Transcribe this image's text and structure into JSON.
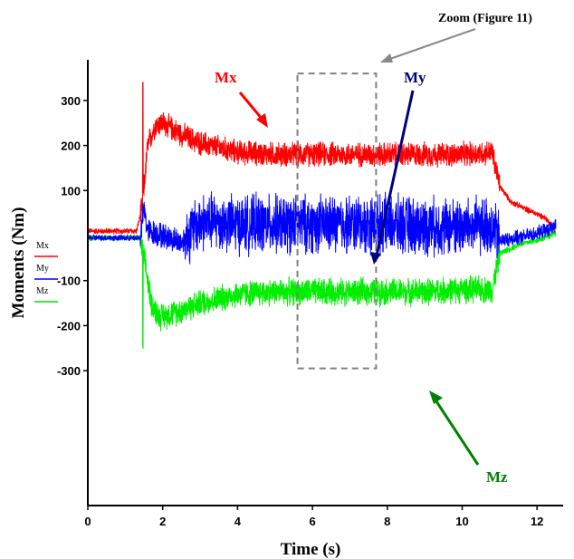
{
  "chart_data": {
    "type": "line",
    "xlabel": "Time (s)",
    "ylabel": "Moments  (Nm)",
    "xlim": [
      0,
      12.6
    ],
    "ylim": [
      -300,
      350
    ],
    "x_ticks": [
      "0",
      "2",
      "4",
      "6",
      "8",
      "10",
      "12"
    ],
    "y_ticks": [
      "300",
      "200",
      "100",
      "-100",
      "-200",
      "-300"
    ],
    "grid": false,
    "legend_placement": "left",
    "legend": [
      "Mx",
      "My",
      "Mz"
    ],
    "series": [
      {
        "name": "Mx",
        "color": "#ff0000",
        "x": [
          0,
          1.3,
          1.45,
          1.6,
          1.8,
          2.0,
          2.5,
          3,
          4,
          5,
          6,
          7,
          8,
          9,
          10,
          10.8,
          11.0,
          11.3,
          11.8,
          12.2,
          12.5
        ],
        "y": [
          10,
          10,
          60,
          200,
          245,
          250,
          225,
          205,
          185,
          180,
          180,
          180,
          180,
          180,
          180,
          185,
          110,
          75,
          55,
          40,
          15
        ],
        "noise": 32,
        "peak": 340
      },
      {
        "name": "My",
        "color": "#0000ff",
        "x": [
          0,
          1.4,
          1.5,
          1.6,
          2.0,
          2.5,
          3.0,
          3.5,
          4,
          5,
          6,
          7,
          8,
          9,
          10,
          10.8,
          11.0,
          11.5,
          12,
          12.5
        ],
        "y": [
          -5,
          -5,
          60,
          10,
          0,
          -15,
          30,
          30,
          25,
          25,
          25,
          25,
          25,
          20,
          20,
          20,
          -10,
          -5,
          5,
          20
        ],
        "noise": 75
      },
      {
        "name": "Mz",
        "color": "#00ee00",
        "x": [
          0,
          1.4,
          1.5,
          1.7,
          1.9,
          2.2,
          3,
          4,
          5,
          6,
          7,
          8,
          9,
          10,
          10.8,
          11.0,
          11.5,
          12,
          12.5
        ],
        "y": [
          -5,
          -5,
          -50,
          -150,
          -180,
          -175,
          -150,
          -130,
          -125,
          -125,
          -125,
          -125,
          -125,
          -120,
          -120,
          -40,
          -20,
          -10,
          5
        ],
        "noise": 35,
        "peak": -250
      }
    ],
    "annotations": [
      {
        "text": "Mx",
        "color": "#ff0000"
      },
      {
        "text": "My",
        "color": "#000080"
      },
      {
        "text": "Mz",
        "color": "#008000"
      },
      {
        "text": "Zoom (Figure 11)",
        "color": "#000000"
      }
    ],
    "zoom_box": {
      "x_range": [
        5.6,
        7.7
      ],
      "y_range": [
        -295,
        360
      ]
    }
  }
}
